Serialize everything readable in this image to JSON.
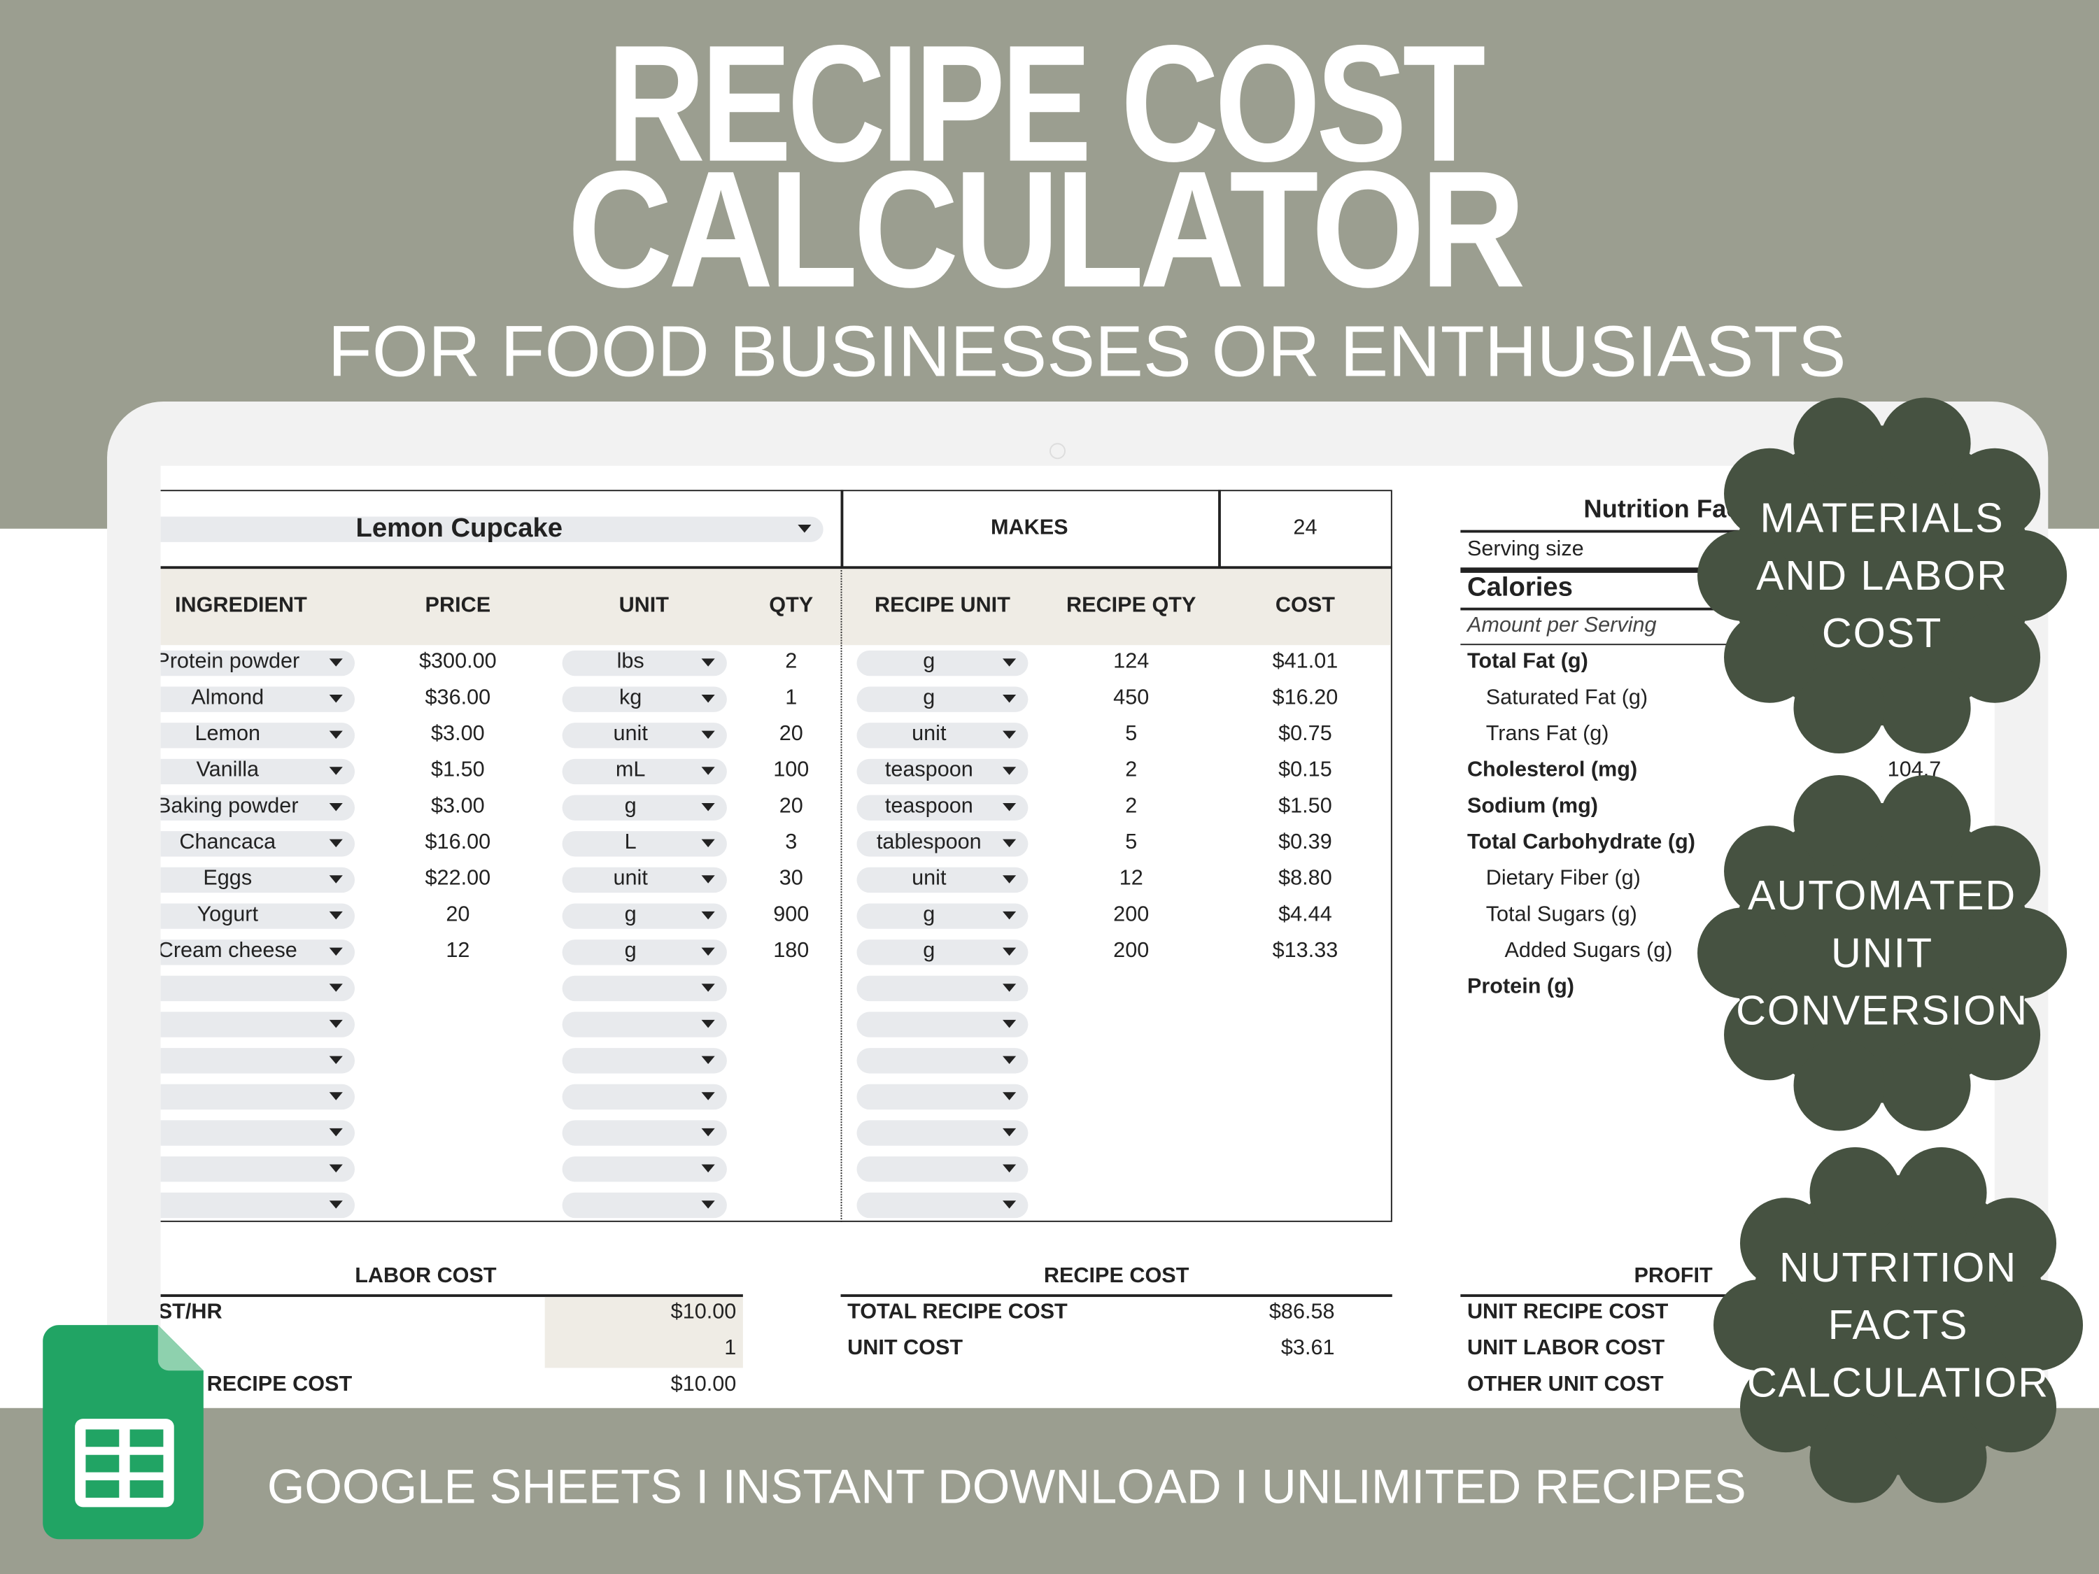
{
  "header": {
    "title": [
      "RECIPE COST",
      "CALCULATOR"
    ],
    "subtitle": "FOR FOOD BUSINESSES OR ENTHUSIASTS"
  },
  "sheet": {
    "recipe_name": "Lemon Cupcake",
    "makes_label": "MAKES",
    "makes": 24,
    "columns": [
      "INGREDIENT",
      "PRICE",
      "UNIT",
      "QTY",
      "RECIPE UNIT",
      "RECIPE QTY",
      "COST"
    ],
    "rows": [
      [
        "Protein powder",
        "$300.00",
        "lbs",
        2,
        "g",
        124,
        "$41.01"
      ],
      [
        "Almond",
        "$36.00",
        "kg",
        1,
        "g",
        450,
        "$16.20"
      ],
      [
        "Lemon",
        "$3.00",
        "unit",
        20,
        "unit",
        5,
        "$0.75"
      ],
      [
        "Vanilla",
        "$1.50",
        "mL",
        100,
        "teaspoon",
        2,
        "$0.15"
      ],
      [
        "Baking powder",
        "$3.00",
        "g",
        20,
        "teaspoon",
        2,
        "$1.50"
      ],
      [
        "Chancaca",
        "$16.00",
        "L",
        3,
        "tablespoon",
        5,
        "$0.39"
      ],
      [
        "Eggs",
        "$22.00",
        "unit",
        30,
        "unit",
        12,
        "$8.80"
      ],
      [
        "Yogurt",
        20,
        "g",
        900,
        "g",
        200,
        "$4.44"
      ],
      [
        "Cream cheese",
        12,
        "g",
        180,
        "g",
        200,
        "$13.33"
      ]
    ]
  },
  "nutrition": {
    "title": "Nutrition Facts",
    "rows": [
      {
        "label": "Serving size",
        "style": "normal"
      },
      {
        "label": "Calories",
        "style": "large"
      },
      {
        "label": "Amount per Serving",
        "style": "italic"
      },
      {
        "label": "Total Fat (g)",
        "style": "bold"
      },
      {
        "label": "Saturated Fat (g)",
        "style": "indent"
      },
      {
        "label": "Trans Fat (g)",
        "style": "indent"
      },
      {
        "label": "Cholesterol (mg)",
        "style": "bold",
        "value": 104.7
      },
      {
        "label": "Sodium (mg)",
        "style": "bold"
      },
      {
        "label": "Total Carbohydrate (g)",
        "style": "bold"
      },
      {
        "label": "Dietary Fiber (g)",
        "style": "indent"
      },
      {
        "label": "Total Sugars (g)",
        "style": "indent"
      },
      {
        "label": "Added Sugars (g)",
        "style": "indent2"
      },
      {
        "label": "Protein (g)",
        "style": "bold"
      }
    ]
  },
  "labor_cost": {
    "title": "LABOR COST",
    "rows": [
      {
        "label": "ST/HR",
        "value": "$10.00"
      },
      {
        "value": 1
      },
      {
        "label": "RECIPE COST",
        "value": "$10.00"
      }
    ]
  },
  "recipe_cost": {
    "title": "RECIPE COST",
    "rows": [
      {
        "label": "TOTAL RECIPE COST",
        "value": "$86.58"
      },
      {
        "label": "UNIT COST",
        "value": "$3.61"
      }
    ]
  },
  "profit": {
    "title": "PROFIT",
    "rows": [
      {
        "label": "UNIT RECIPE COST"
      },
      {
        "label": "UNIT LABOR COST"
      },
      {
        "label": "OTHER UNIT COST"
      }
    ]
  },
  "badges": [
    [
      "MATERIALS",
      "AND LABOR",
      "COST"
    ],
    [
      "AUTOMATED",
      "UNIT",
      "CONVERSION"
    ],
    [
      "NUTRITION",
      "FACTS",
      "CALCULATIOR"
    ]
  ],
  "footer": "GOOGLE SHEETS I INSTANT DOWNLOAD I UNLIMITED RECIPES"
}
